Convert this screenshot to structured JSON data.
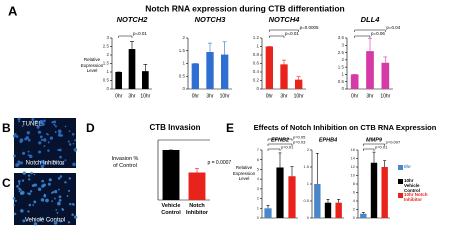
{
  "figure": {
    "panel_labels": [
      "A",
      "B",
      "C",
      "D",
      "E"
    ],
    "title": "Notch RNA expression during CTB differentiation"
  },
  "images": [
    [
      "TUNEL",
      "Notch Inhibitor"
    ],
    [
      "Vehicle Control"
    ]
  ],
  "chart_data": [
    {
      "type": "bar",
      "title": "NOTCH2",
      "ylabel": "Relative Expression Level",
      "categories": [
        "0hr",
        "3hr",
        "10hr"
      ],
      "values": [
        1,
        2.35,
        1.05
      ],
      "errors": [
        0,
        0.45,
        0.4
      ],
      "color": "#000000",
      "ylim": [
        0,
        3
      ],
      "yticks": [
        0,
        0.5,
        1,
        1.5,
        2,
        2.5,
        3
      ],
      "annotations": [
        "p=0.01"
      ]
    },
    {
      "type": "bar",
      "title": "NOTCH3",
      "categories": [
        "0hr",
        "3hr",
        "10hr"
      ],
      "values": [
        1,
        1.45,
        1.35
      ],
      "errors": [
        0,
        0.35,
        0.5
      ],
      "color": "#2f6fd1",
      "ylim": [
        0,
        2
      ],
      "yticks": [
        0,
        0.5,
        1,
        1.5,
        2
      ],
      "annotations": []
    },
    {
      "type": "bar",
      "title": "NOTCH4",
      "categories": [
        "0hr",
        "3hr",
        "10hr"
      ],
      "values": [
        1,
        0.58,
        0.22
      ],
      "errors": [
        0,
        0.1,
        0.07
      ],
      "color": "#e8231c",
      "ylim": [
        0,
        1.2
      ],
      "yticks": [
        0,
        0.2,
        0.4,
        0.6,
        0.8,
        1,
        1.2
      ],
      "annotations": [
        "p=0.01",
        "p=0.0005"
      ]
    },
    {
      "type": "bar",
      "title": "DLL4",
      "categories": [
        "0hr",
        "3hr",
        "10hr"
      ],
      "values": [
        1,
        2.6,
        1.8
      ],
      "errors": [
        0,
        0.85,
        0.4
      ],
      "color": "#d63aa6",
      "ylim": [
        0,
        3.5
      ],
      "yticks": [
        0,
        0.5,
        1,
        1.5,
        2,
        2.5,
        3,
        3.5
      ],
      "annotations": [
        "p=0.06",
        "p=0.04"
      ]
    },
    {
      "type": "bar",
      "title": "CTB Invasion",
      "ylabel": "Invasion % of Control",
      "categories": [
        "Vehicle Control",
        "Notch Inhibitor"
      ],
      "values": [
        100,
        55
      ],
      "errors": [
        0,
        8
      ],
      "colors": [
        "#000000",
        "#e8231c"
      ],
      "ylim": [
        0,
        120
      ],
      "annotations": [
        "p = 0.0007"
      ]
    },
    {
      "type": "grouped-bar",
      "title": "Effects of Notch Inhibition on CTB RNA Expression",
      "ylabel": "Relative Expression Level",
      "categories": [
        "EFNB2",
        "EPHB4",
        "MMP9"
      ],
      "axes": [
        {
          "ylim": [
            0,
            7
          ],
          "yticks": [
            0,
            1,
            2,
            3,
            4,
            5,
            6,
            7
          ]
        },
        {
          "ylim": [
            0,
            2
          ],
          "yticks": [
            0,
            0.5,
            1,
            1.5,
            2
          ]
        },
        {
          "ylim": [
            0,
            16
          ],
          "yticks": [
            0,
            2,
            4,
            6,
            8,
            10,
            12,
            14,
            16
          ]
        }
      ],
      "series": [
        {
          "name": "0hr",
          "color": "#4a86c8",
          "values": [
            1,
            1,
            1
          ],
          "errors": [
            0.3,
            0.9,
            0.3
          ]
        },
        {
          "name": "10hr Vehicle Control",
          "color": "#000000",
          "values": [
            5.2,
            0.45,
            13
          ],
          "errors": [
            1.5,
            0.1,
            2.5
          ]
        },
        {
          "name": "10hr Notch Inhibitor",
          "color": "#e8231c",
          "values": [
            4.3,
            0.45,
            12
          ],
          "errors": [
            1,
            0.1,
            1.5
          ]
        }
      ],
      "annotations": [
        [
          "p=0.01",
          "p=0.03",
          "p=0.05"
        ],
        [],
        [
          "p=0.01",
          "p=0.007"
        ]
      ]
    }
  ]
}
